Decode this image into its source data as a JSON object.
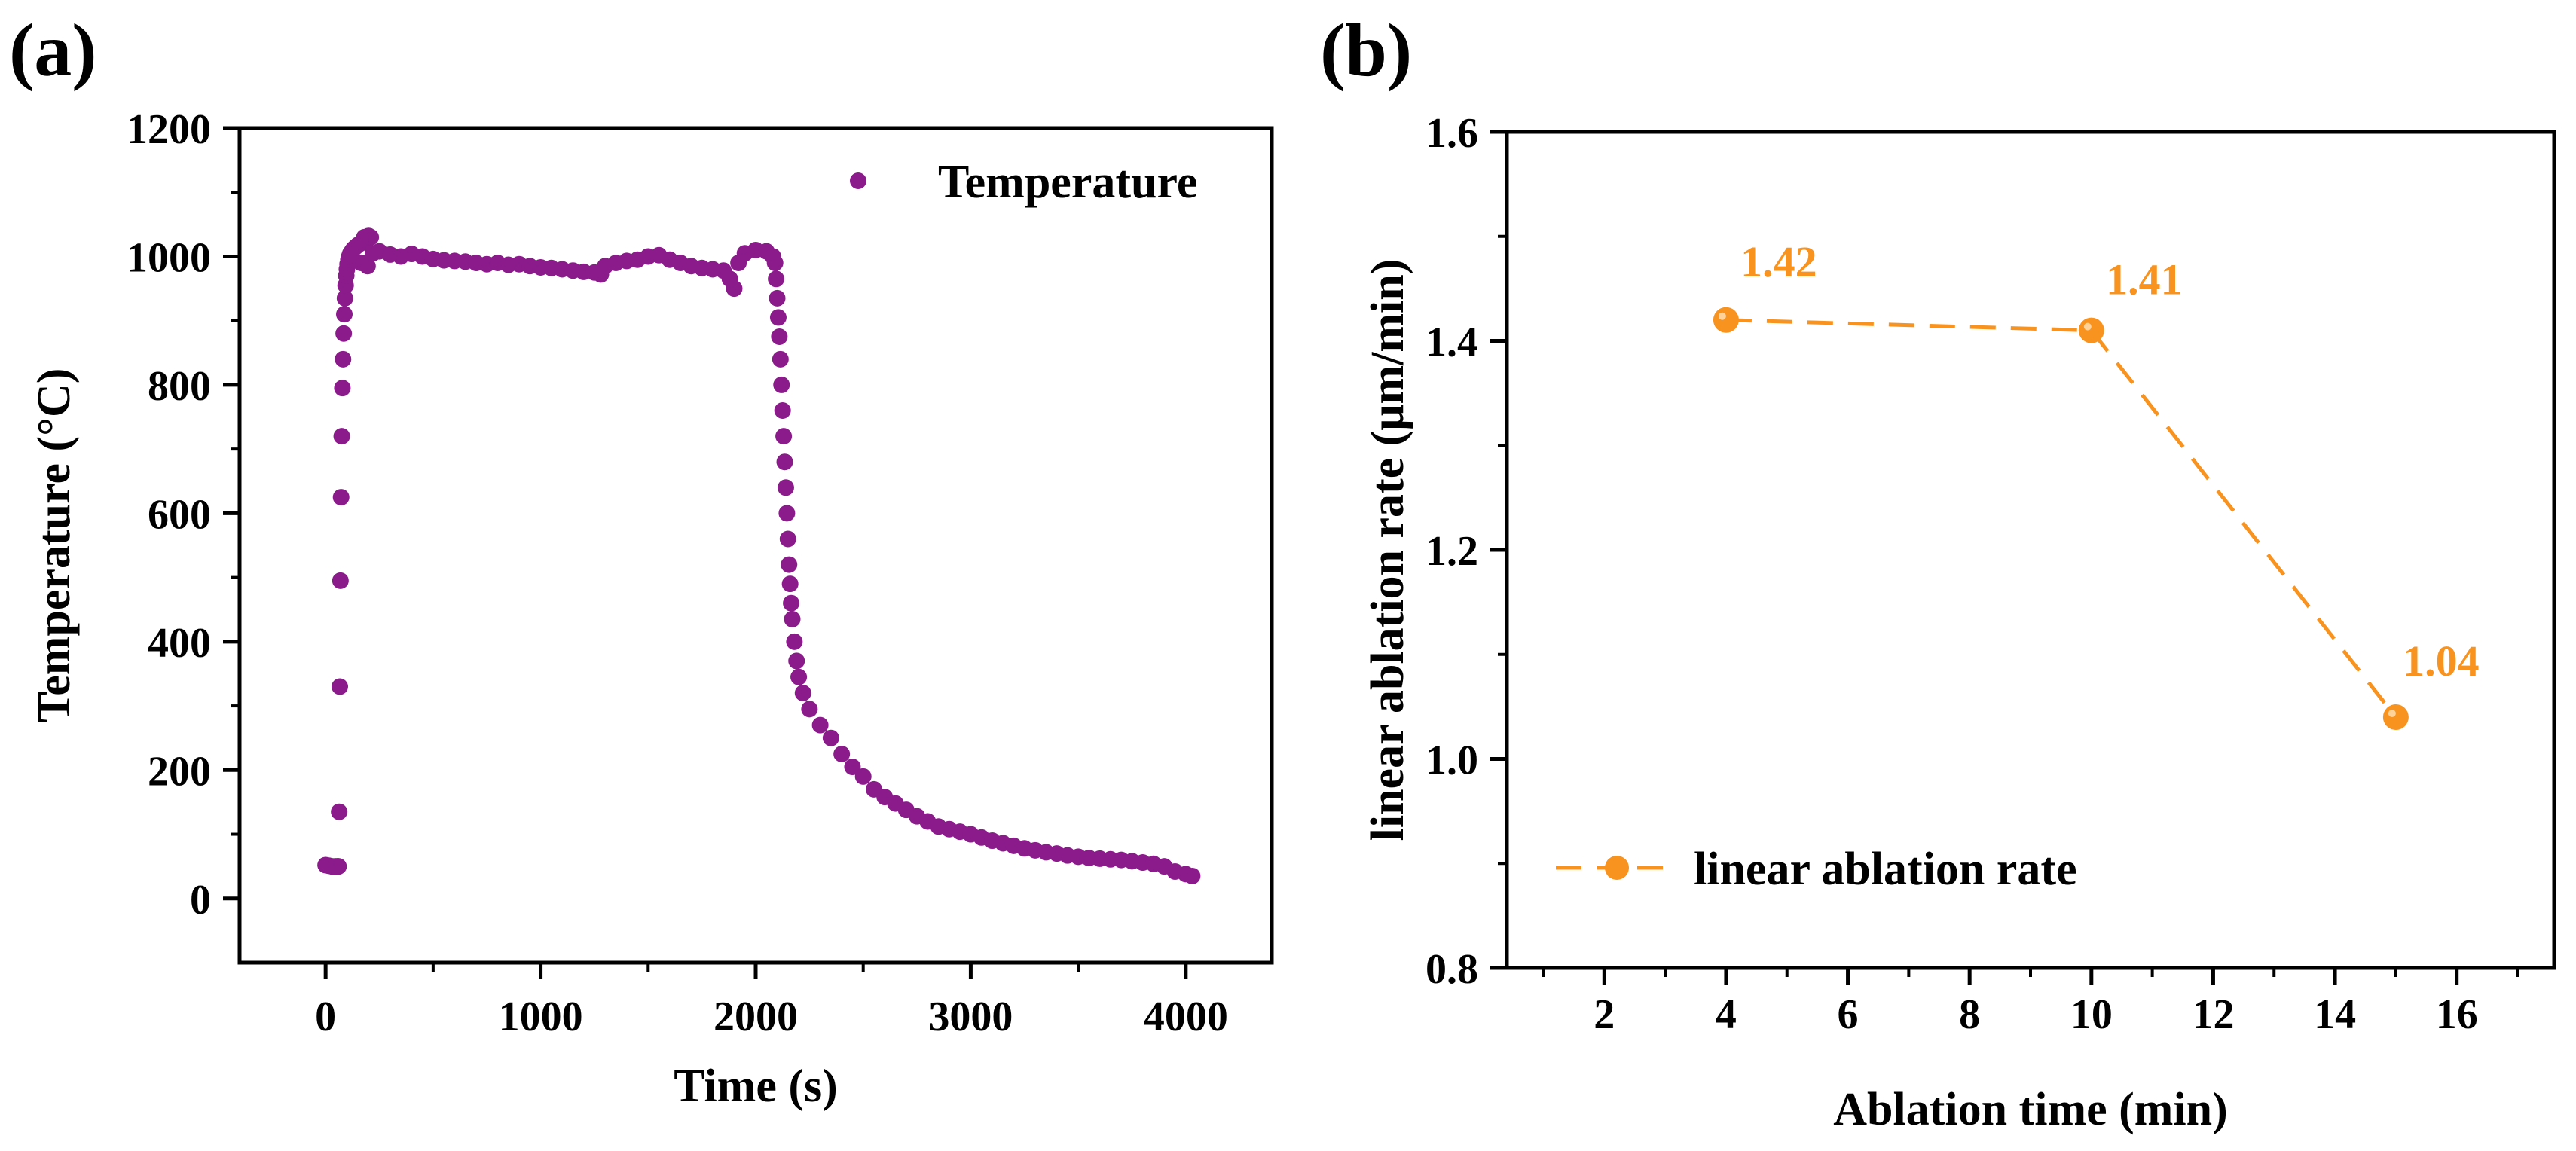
{
  "colors": {
    "purple": "#8B1A8B",
    "orange": "#F7931E",
    "axis": "#000000"
  },
  "chart_data": [
    {
      "panel_label": "(a)",
      "type": "scatter",
      "title": "",
      "xlabel": "Time (s)",
      "ylabel": "Temperature (°C)",
      "xlim": [
        -400,
        4400
      ],
      "ylim": [
        -100,
        1200
      ],
      "xticks": [
        0,
        1000,
        2000,
        3000,
        4000
      ],
      "yticks": [
        0,
        200,
        400,
        600,
        800,
        1000,
        1200
      ],
      "legend": {
        "label": "Temperature",
        "position": "top-right"
      },
      "series": [
        {
          "name": "Temperature",
          "color": "#8B1A8B",
          "points": [
            [
              0,
              52
            ],
            [
              15,
              51
            ],
            [
              30,
              50
            ],
            [
              45,
              50
            ],
            [
              55,
              50
            ],
            [
              60,
              50
            ],
            [
              63,
              135
            ],
            [
              66,
              330
            ],
            [
              69,
              495
            ],
            [
              72,
              625
            ],
            [
              75,
              720
            ],
            [
              78,
              795
            ],
            [
              81,
              840
            ],
            [
              84,
              880
            ],
            [
              87,
              910
            ],
            [
              90,
              935
            ],
            [
              93,
              955
            ],
            [
              96,
              970
            ],
            [
              99,
              980
            ],
            [
              102,
              988
            ],
            [
              106,
              995
            ],
            [
              110,
              1000
            ],
            [
              114,
              1004
            ],
            [
              118,
              1006
            ],
            [
              122,
              1008
            ],
            [
              126,
              1010
            ],
            [
              130,
              1012
            ],
            [
              140,
              1015
            ],
            [
              150,
              1018
            ],
            [
              160,
              1020
            ],
            [
              170,
              1022
            ],
            [
              180,
              1030
            ],
            [
              190,
              1025
            ],
            [
              200,
              1032
            ],
            [
              210,
              1030
            ],
            [
              165,
              990
            ],
            [
              195,
              985
            ],
            [
              220,
              1005
            ],
            [
              250,
              1008
            ],
            [
              300,
              1003
            ],
            [
              350,
              1000
            ],
            [
              400,
              1004
            ],
            [
              450,
              1000
            ],
            [
              500,
              996
            ],
            [
              550,
              994
            ],
            [
              600,
              993
            ],
            [
              650,
              992
            ],
            [
              700,
              990
            ],
            [
              750,
              988
            ],
            [
              800,
              990
            ],
            [
              850,
              987
            ],
            [
              900,
              988
            ],
            [
              950,
              985
            ],
            [
              1000,
              983
            ],
            [
              1050,
              982
            ],
            [
              1100,
              980
            ],
            [
              1150,
              978
            ],
            [
              1200,
              976
            ],
            [
              1250,
              975
            ],
            [
              1280,
              972
            ],
            [
              1300,
              985
            ],
            [
              1350,
              990
            ],
            [
              1400,
              993
            ],
            [
              1450,
              995
            ],
            [
              1500,
              1000
            ],
            [
              1550,
              1002
            ],
            [
              1600,
              995
            ],
            [
              1650,
              990
            ],
            [
              1700,
              985
            ],
            [
              1750,
              982
            ],
            [
              1800,
              980
            ],
            [
              1850,
              978
            ],
            [
              1880,
              965
            ],
            [
              1900,
              950
            ],
            [
              1920,
              990
            ],
            [
              1950,
              1005
            ],
            [
              2000,
              1010
            ],
            [
              2050,
              1008
            ],
            [
              2080,
              1000
            ],
            [
              2090,
              990
            ],
            [
              2095,
              965
            ],
            [
              2100,
              935
            ],
            [
              2105,
              905
            ],
            [
              2110,
              875
            ],
            [
              2115,
              840
            ],
            [
              2120,
              800
            ],
            [
              2125,
              760
            ],
            [
              2130,
              720
            ],
            [
              2135,
              680
            ],
            [
              2140,
              640
            ],
            [
              2145,
              600
            ],
            [
              2150,
              560
            ],
            [
              2155,
              520
            ],
            [
              2160,
              490
            ],
            [
              2165,
              460
            ],
            [
              2170,
              435
            ],
            [
              2180,
              400
            ],
            [
              2190,
              370
            ],
            [
              2200,
              345
            ],
            [
              2220,
              320
            ],
            [
              2250,
              295
            ],
            [
              2300,
              270
            ],
            [
              2350,
              250
            ],
            [
              2400,
              225
            ],
            [
              2450,
              205
            ],
            [
              2500,
              190
            ],
            [
              2550,
              170
            ],
            [
              2600,
              158
            ],
            [
              2650,
              148
            ],
            [
              2700,
              138
            ],
            [
              2750,
              128
            ],
            [
              2800,
              120
            ],
            [
              2850,
              112
            ],
            [
              2900,
              108
            ],
            [
              2950,
              104
            ],
            [
              3000,
              100
            ],
            [
              3050,
              95
            ],
            [
              3100,
              90
            ],
            [
              3150,
              86
            ],
            [
              3200,
              82
            ],
            [
              3250,
              78
            ],
            [
              3300,
              75
            ],
            [
              3350,
              72
            ],
            [
              3400,
              70
            ],
            [
              3450,
              67
            ],
            [
              3500,
              65
            ],
            [
              3550,
              63
            ],
            [
              3600,
              62
            ],
            [
              3650,
              61
            ],
            [
              3700,
              60
            ],
            [
              3750,
              58
            ],
            [
              3800,
              56
            ],
            [
              3850,
              54
            ],
            [
              3900,
              50
            ],
            [
              3950,
              42
            ],
            [
              4000,
              38
            ],
            [
              4030,
              35
            ]
          ]
        }
      ]
    },
    {
      "panel_label": "(b)",
      "type": "line",
      "title": "",
      "xlabel": "Ablation time (min)",
      "ylabel": "linear ablation rate (μm/min)",
      "xlim": [
        0.4,
        17.6
      ],
      "ylim": [
        0.8,
        1.6
      ],
      "xticks": [
        2,
        4,
        6,
        8,
        10,
        12,
        14,
        16
      ],
      "yticks": [
        0.8,
        1.0,
        1.2,
        1.4,
        1.6
      ],
      "ytick_labels": [
        "0.8",
        "1.0",
        "1.2",
        "1.4",
        "1.6"
      ],
      "legend": {
        "label": "linear ablation rate",
        "position": "bottom-left"
      },
      "series": [
        {
          "name": "linear ablation rate",
          "color": "#F7931E",
          "line_style": "dashed",
          "x": [
            4,
            10,
            15
          ],
          "y": [
            1.42,
            1.41,
            1.04
          ],
          "data_labels": [
            "1.42",
            "1.41",
            "1.04"
          ]
        }
      ]
    }
  ]
}
